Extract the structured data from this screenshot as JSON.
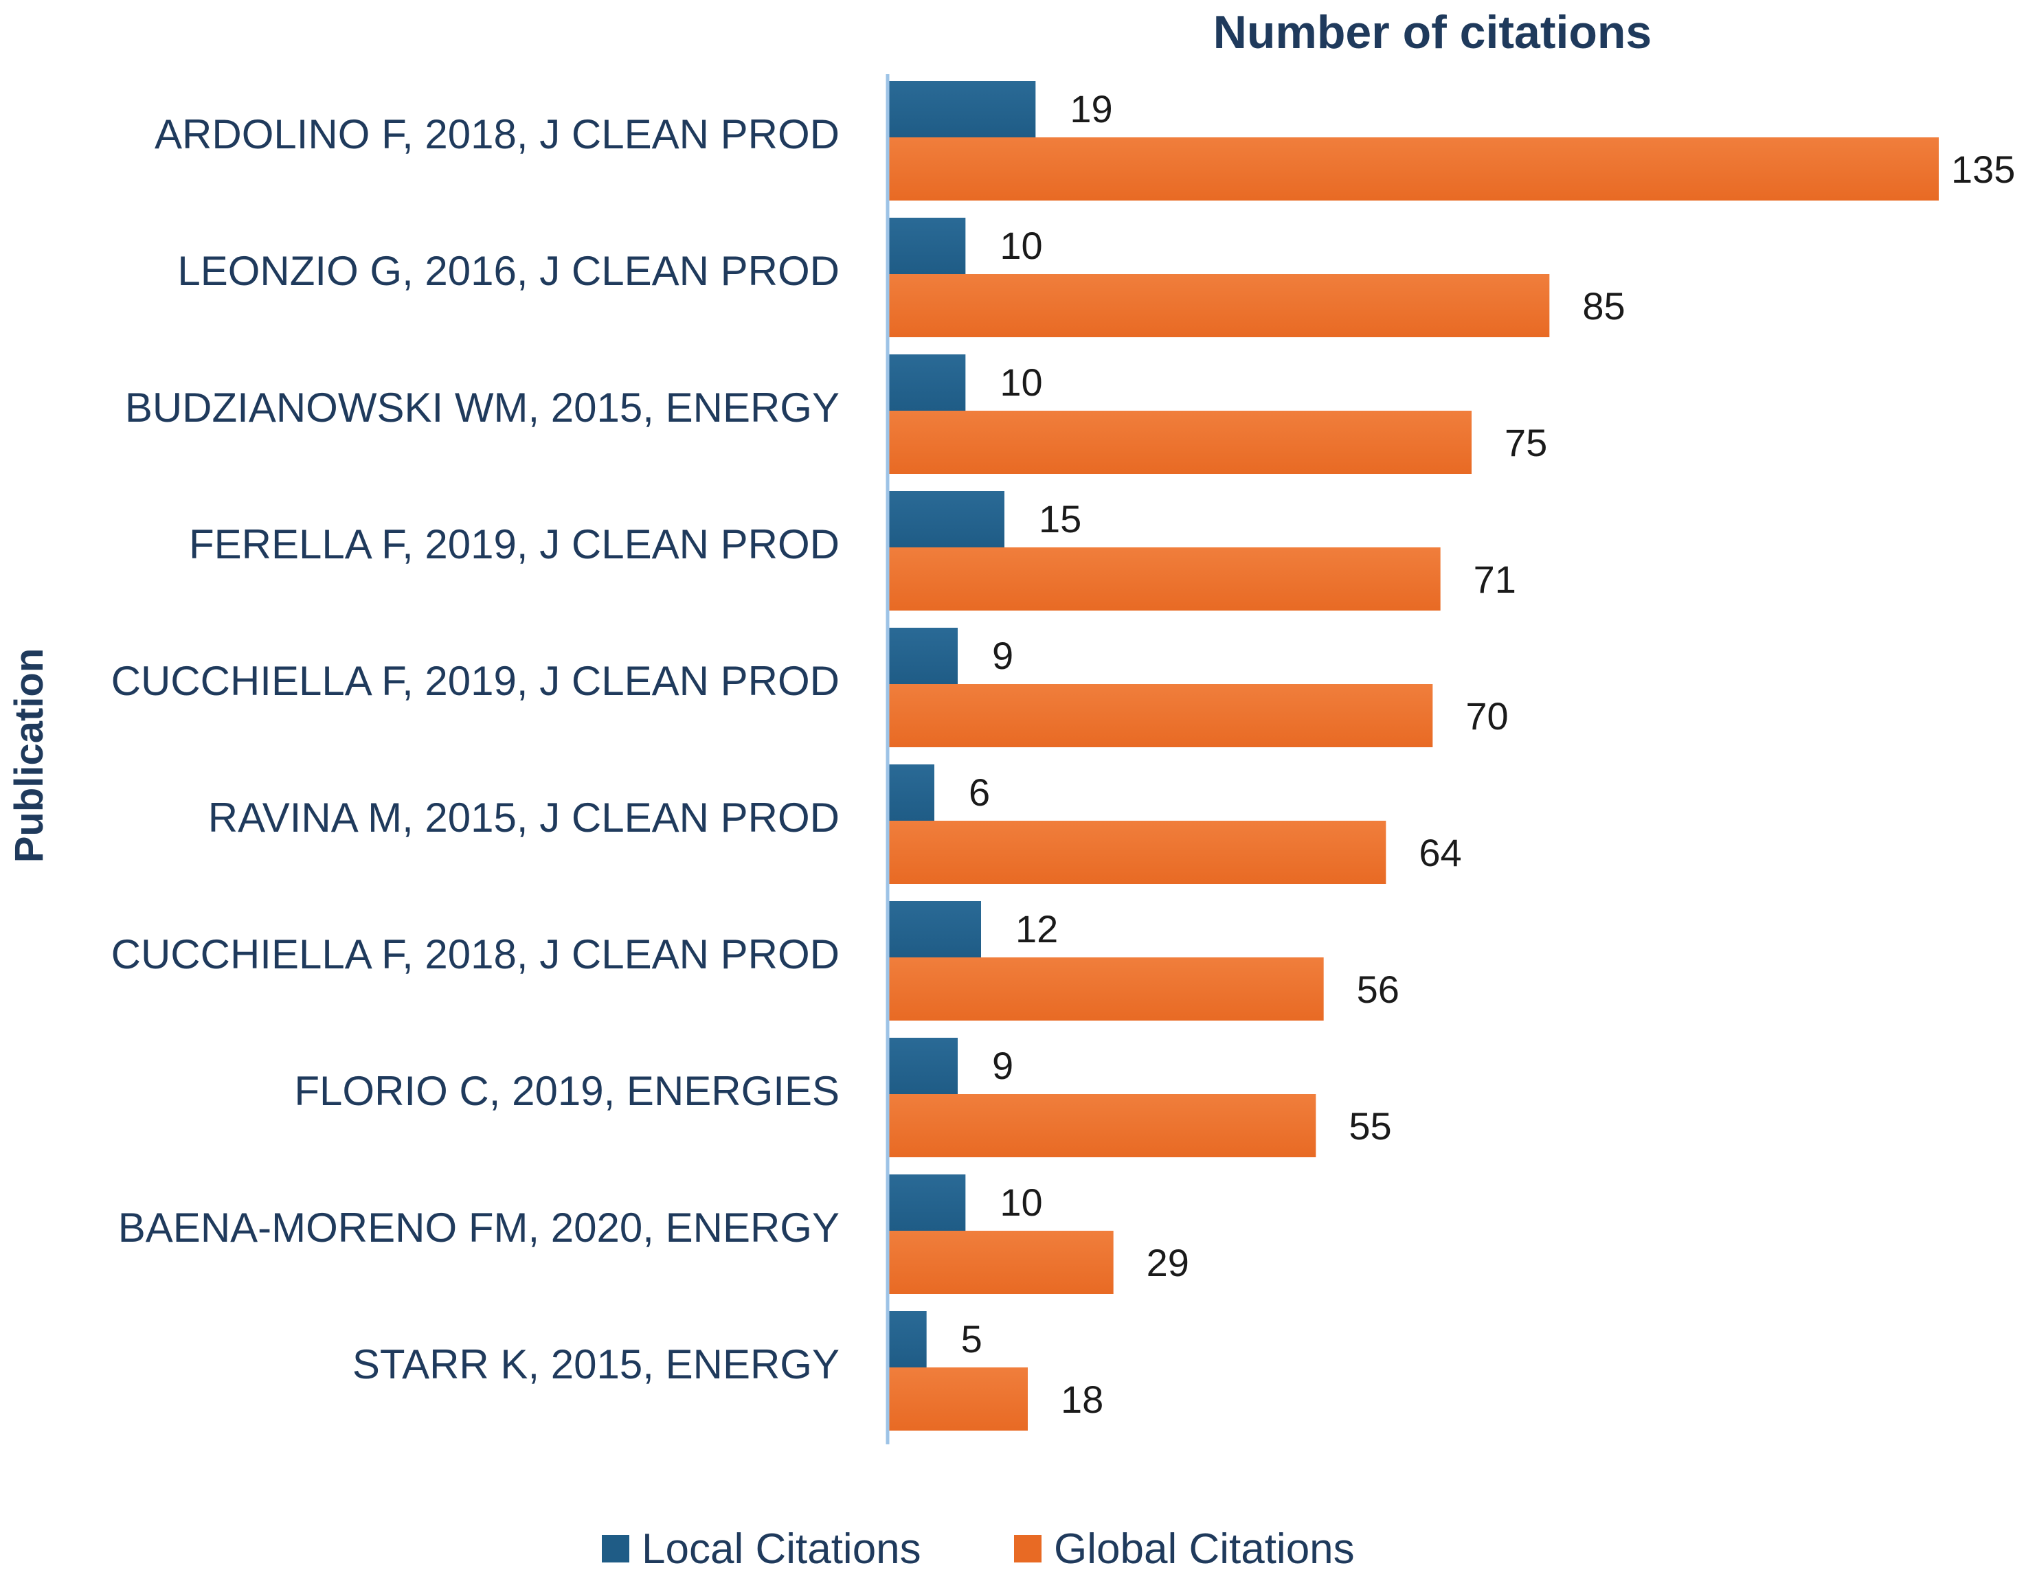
{
  "chart_data": {
    "type": "bar",
    "orientation": "horizontal",
    "title": "Number of citations",
    "xlabel": "Number of citations",
    "ylabel": "Publication",
    "xlim": [
      0,
      135
    ],
    "grid": false,
    "legend_position": "bottom",
    "categories": [
      "ARDOLINO F, 2018, J CLEAN PROD",
      "LEONZIO G, 2016, J CLEAN PROD",
      "BUDZIANOWSKI WM, 2015, ENERGY",
      "FERELLA F, 2019, J CLEAN PROD",
      "CUCCHIELLA F, 2019, J CLEAN PROD",
      "RAVINA M, 2015, J CLEAN PROD",
      "CUCCHIELLA F, 2018, J CLEAN PROD",
      "FLORIO C, 2019, ENERGIES",
      "BAENA-MORENO FM, 2020, ENERGY",
      "STARR K, 2015, ENERGY"
    ],
    "series": [
      {
        "name": "Local Citations",
        "color": "#1F5C86",
        "values": [
          19,
          10,
          10,
          15,
          9,
          6,
          12,
          9,
          10,
          5
        ]
      },
      {
        "name": "Global Citations",
        "color": "#E86A24",
        "values": [
          135,
          85,
          75,
          71,
          70,
          64,
          56,
          55,
          29,
          18
        ]
      }
    ]
  },
  "colors": {
    "text": "#1F3A5C",
    "axis_line": "#9DC3E6",
    "local_gradient_top": "#2A6A96",
    "global_gradient_top": "#F07E3C"
  }
}
